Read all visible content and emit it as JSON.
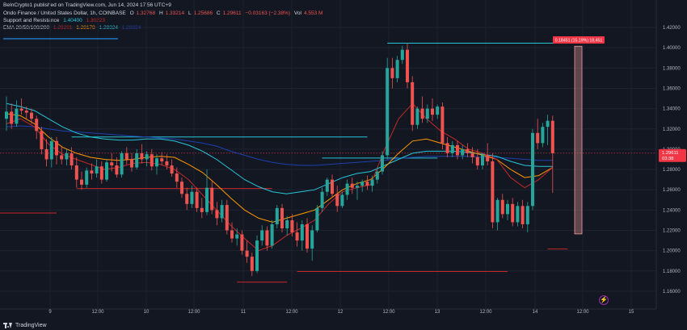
{
  "header": {
    "publisher": "BeInCrypto1 published on TradingView.com, Jun 14, 2024 17:56 UTC+9",
    "symbol": "Ondo Finance / United States Dollar, 1h, COINBASE",
    "o_label": "O",
    "o_value": "1.32768",
    "h_label": "H",
    "h_value": "1.33214",
    "l_label": "L",
    "l_value": "1.25686",
    "c_label": "C",
    "c_value": "1.29611",
    "change": "−0.03163 (−2.38%)",
    "vol_label": "Vol",
    "vol_value": "4.553 M",
    "sr_name": "Support and Resistance",
    "sr_v1": "1.40400",
    "sr_v2": "1.30223",
    "ema_name": "EMA 20/50/100/200",
    "ema_v1": "1.28201",
    "ema_v2": "1.28178",
    "ema_v3": "1.28324",
    "ema_v4": "1.28824"
  },
  "footer": {
    "brand": "TradingView"
  },
  "colors": {
    "background": "#131722",
    "up": "#26a69a",
    "down": "#ef5350",
    "ema20": "#c62828",
    "ema50": "#ff9800",
    "ema100": "#26c6da",
    "ema200": "#1e40af",
    "resistance": "#26c6da",
    "support": "#c62828",
    "current_price": "#f23645",
    "measure_box": "#ef9a9a"
  },
  "chart_data": {
    "type": "candlestick",
    "symbol": "ONDO/USD",
    "timeframe": "1h",
    "ylim": [
      1.15,
      1.43
    ],
    "y_ticks": [
      "1.16000",
      "1.18000",
      "1.20000",
      "1.22000",
      "1.24000",
      "1.26000",
      "1.28000",
      "1.30000",
      "1.32000",
      "1.34000",
      "1.36000",
      "1.38000",
      "1.40000",
      "1.42000"
    ],
    "x_ticks": [
      "9",
      "12:00",
      "10",
      "12:00",
      "11",
      "12:00",
      "12",
      "12:00",
      "13",
      "12:00",
      "14",
      "12:00",
      "15"
    ],
    "current_price": "1.29611",
    "countdown": "03:38",
    "measure_label": "0.18451 (15.19%) 18,451",
    "candles_ohlc": [
      [
        1.33,
        1.352,
        1.318,
        1.337
      ],
      [
        1.337,
        1.345,
        1.32,
        1.325
      ],
      [
        1.325,
        1.348,
        1.322,
        1.34
      ],
      [
        1.34,
        1.35,
        1.334,
        1.338
      ],
      [
        1.338,
        1.342,
        1.33,
        1.336
      ],
      [
        1.336,
        1.34,
        1.325,
        1.33
      ],
      [
        1.33,
        1.333,
        1.31,
        1.318
      ],
      [
        1.318,
        1.322,
        1.295,
        1.3
      ],
      [
        1.3,
        1.31,
        1.283,
        1.29
      ],
      [
        1.29,
        1.312,
        1.282,
        1.308
      ],
      [
        1.308,
        1.312,
        1.285,
        1.294
      ],
      [
        1.294,
        1.302,
        1.285,
        1.29
      ],
      [
        1.29,
        1.3,
        1.284,
        1.296
      ],
      [
        1.296,
        1.302,
        1.28,
        1.284
      ],
      [
        1.284,
        1.292,
        1.262,
        1.27
      ],
      [
        1.27,
        1.278,
        1.26,
        1.265
      ],
      [
        1.265,
        1.282,
        1.262,
        1.279
      ],
      [
        1.279,
        1.286,
        1.27,
        1.276
      ],
      [
        1.276,
        1.29,
        1.272,
        1.283
      ],
      [
        1.283,
        1.288,
        1.266,
        1.27
      ],
      [
        1.27,
        1.29,
        1.268,
        1.287
      ],
      [
        1.287,
        1.296,
        1.278,
        1.284
      ],
      [
        1.284,
        1.292,
        1.272,
        1.275
      ],
      [
        1.275,
        1.298,
        1.272,
        1.296
      ],
      [
        1.296,
        1.302,
        1.285,
        1.29
      ],
      [
        1.29,
        1.296,
        1.278,
        1.282
      ],
      [
        1.282,
        1.3,
        1.28,
        1.296
      ],
      [
        1.296,
        1.305,
        1.286,
        1.29
      ],
      [
        1.29,
        1.298,
        1.283,
        1.295
      ],
      [
        1.295,
        1.3,
        1.279,
        1.283
      ],
      [
        1.283,
        1.295,
        1.275,
        1.291
      ],
      [
        1.291,
        1.297,
        1.284,
        1.288
      ],
      [
        1.288,
        1.295,
        1.28,
        1.284
      ],
      [
        1.284,
        1.29,
        1.273,
        1.276
      ],
      [
        1.276,
        1.282,
        1.262,
        1.268
      ],
      [
        1.268,
        1.272,
        1.252,
        1.256
      ],
      [
        1.256,
        1.262,
        1.24,
        1.246
      ],
      [
        1.246,
        1.264,
        1.242,
        1.258
      ],
      [
        1.258,
        1.262,
        1.238,
        1.242
      ],
      [
        1.242,
        1.252,
        1.232,
        1.238
      ],
      [
        1.238,
        1.28,
        1.235,
        1.262
      ],
      [
        1.262,
        1.268,
        1.236,
        1.24
      ],
      [
        1.24,
        1.248,
        1.225,
        1.232
      ],
      [
        1.232,
        1.25,
        1.228,
        1.245
      ],
      [
        1.245,
        1.25,
        1.216,
        1.22
      ],
      [
        1.22,
        1.228,
        1.208,
        1.212
      ],
      [
        1.212,
        1.222,
        1.205,
        1.216
      ],
      [
        1.216,
        1.22,
        1.196,
        1.2
      ],
      [
        1.2,
        1.21,
        1.188,
        1.194
      ],
      [
        1.194,
        1.198,
        1.175,
        1.18
      ],
      [
        1.18,
        1.215,
        1.178,
        1.21
      ],
      [
        1.21,
        1.225,
        1.205,
        1.22
      ],
      [
        1.22,
        1.224,
        1.2,
        1.205
      ],
      [
        1.205,
        1.23,
        1.202,
        1.226
      ],
      [
        1.226,
        1.245,
        1.222,
        1.242
      ],
      [
        1.242,
        1.246,
        1.218,
        1.222
      ],
      [
        1.222,
        1.234,
        1.215,
        1.23
      ],
      [
        1.23,
        1.236,
        1.214,
        1.218
      ],
      [
        1.218,
        1.228,
        1.204,
        1.21
      ],
      [
        1.21,
        1.23,
        1.2,
        1.226
      ],
      [
        1.226,
        1.232,
        1.198,
        1.202
      ],
      [
        1.202,
        1.225,
        1.19,
        1.22
      ],
      [
        1.22,
        1.245,
        1.218,
        1.242
      ],
      [
        1.242,
        1.262,
        1.238,
        1.258
      ],
      [
        1.258,
        1.272,
        1.254,
        1.27
      ],
      [
        1.27,
        1.275,
        1.252,
        1.256
      ],
      [
        1.256,
        1.264,
        1.238,
        1.244
      ],
      [
        1.244,
        1.258,
        1.242,
        1.255
      ],
      [
        1.255,
        1.27,
        1.25,
        1.266
      ],
      [
        1.266,
        1.272,
        1.256,
        1.262
      ],
      [
        1.262,
        1.268,
        1.25,
        1.264
      ],
      [
        1.264,
        1.27,
        1.258,
        1.268
      ],
      [
        1.268,
        1.274,
        1.26,
        1.264
      ],
      [
        1.264,
        1.274,
        1.258,
        1.27
      ],
      [
        1.27,
        1.282,
        1.266,
        1.278
      ],
      [
        1.278,
        1.298,
        1.275,
        1.294
      ],
      [
        1.294,
        1.39,
        1.29,
        1.38
      ],
      [
        1.38,
        1.39,
        1.36,
        1.37
      ],
      [
        1.37,
        1.392,
        1.366,
        1.388
      ],
      [
        1.388,
        1.402,
        1.384,
        1.398
      ],
      [
        1.398,
        1.404,
        1.36,
        1.366
      ],
      [
        1.366,
        1.372,
        1.318,
        1.324
      ],
      [
        1.324,
        1.342,
        1.32,
        1.34
      ],
      [
        1.34,
        1.352,
        1.326,
        1.33
      ],
      [
        1.33,
        1.344,
        1.326,
        1.34
      ],
      [
        1.34,
        1.35,
        1.328,
        1.334
      ],
      [
        1.334,
        1.344,
        1.33,
        1.342
      ],
      [
        1.342,
        1.346,
        1.3,
        1.306
      ],
      [
        1.306,
        1.312,
        1.292,
        1.296
      ],
      [
        1.296,
        1.308,
        1.292,
        1.304
      ],
      [
        1.304,
        1.308,
        1.29,
        1.294
      ],
      [
        1.294,
        1.304,
        1.29,
        1.3
      ],
      [
        1.3,
        1.306,
        1.292,
        1.296
      ],
      [
        1.296,
        1.302,
        1.286,
        1.292
      ],
      [
        1.292,
        1.3,
        1.28,
        1.284
      ],
      [
        1.284,
        1.296,
        1.28,
        1.294
      ],
      [
        1.294,
        1.306,
        1.284,
        1.288
      ],
      [
        1.288,
        1.296,
        1.222,
        1.228
      ],
      [
        1.228,
        1.252,
        1.22,
        1.25
      ],
      [
        1.25,
        1.256,
        1.232,
        1.236
      ],
      [
        1.236,
        1.25,
        1.23,
        1.246
      ],
      [
        1.246,
        1.252,
        1.224,
        1.228
      ],
      [
        1.228,
        1.248,
        1.224,
        1.244
      ],
      [
        1.244,
        1.25,
        1.222,
        1.226
      ],
      [
        1.226,
        1.248,
        1.218,
        1.244
      ],
      [
        1.244,
        1.32,
        1.24,
        1.316
      ],
      [
        1.316,
        1.33,
        1.3,
        1.306
      ],
      [
        1.306,
        1.326,
        1.302,
        1.322
      ],
      [
        1.322,
        1.334,
        1.304,
        1.328
      ],
      [
        1.328,
        1.333,
        1.257,
        1.296
      ]
    ],
    "ema20": [
      1.325,
      1.33,
      1.322,
      1.305,
      1.295,
      1.29,
      1.285,
      1.28,
      1.282,
      1.286,
      1.287,
      1.285,
      1.28,
      1.27,
      1.255,
      1.24,
      1.225,
      1.212,
      1.2,
      1.205,
      1.215,
      1.222,
      1.23,
      1.246,
      1.258,
      1.262,
      1.265,
      1.3,
      1.33,
      1.345,
      1.33,
      1.318,
      1.31,
      1.3,
      1.296,
      1.29,
      1.272,
      1.262,
      1.27,
      1.282
    ],
    "ema50": [
      1.335,
      1.333,
      1.325,
      1.312,
      1.302,
      1.296,
      1.292,
      1.29,
      1.289,
      1.29,
      1.292,
      1.293,
      1.292,
      1.285,
      1.277,
      1.265,
      1.252,
      1.24,
      1.232,
      1.228,
      1.232,
      1.236,
      1.24,
      1.25,
      1.26,
      1.266,
      1.27,
      1.282,
      1.296,
      1.308,
      1.31,
      1.306,
      1.302,
      1.298,
      1.294,
      1.29,
      1.28,
      1.272,
      1.274,
      1.282
    ],
    "ema100": [
      1.345,
      1.342,
      1.338,
      1.33,
      1.322,
      1.316,
      1.312,
      1.31,
      1.309,
      1.309,
      1.31,
      1.31,
      1.308,
      1.304,
      1.298,
      1.29,
      1.28,
      1.27,
      1.263,
      1.258,
      1.256,
      1.258,
      1.26,
      1.266,
      1.272,
      1.276,
      1.278,
      1.284,
      1.29,
      1.296,
      1.298,
      1.298,
      1.298,
      1.297,
      1.295,
      1.293,
      1.288,
      1.284,
      1.283,
      1.283
    ],
    "ema200": [
      1.322,
      1.323,
      1.322,
      1.32,
      1.318,
      1.317,
      1.316,
      1.315,
      1.314,
      1.313,
      1.312,
      1.311,
      1.31,
      1.308,
      1.306,
      1.303,
      1.298,
      1.294,
      1.29,
      1.287,
      1.285,
      1.284,
      1.284,
      1.285,
      1.286,
      1.287,
      1.288,
      1.289,
      1.291,
      1.292,
      1.293,
      1.293,
      1.293,
      1.293,
      1.292,
      1.292,
      1.291,
      1.29,
      1.289,
      1.289
    ],
    "levels": [
      {
        "kind": "resistance",
        "price": 1.4045,
        "from": 76,
        "to": 113
      },
      {
        "kind": "resistance",
        "price": 1.312,
        "from": 13,
        "to": 72
      },
      {
        "kind": "resistance",
        "price": 1.2913,
        "from": 63,
        "to": 86
      },
      {
        "kind": "support",
        "price": 1.2613,
        "from": 14,
        "to": 53
      },
      {
        "kind": "support",
        "price": 1.2371,
        "from": -4,
        "to": 10
      },
      {
        "kind": "support",
        "price": 1.2016,
        "from": 108,
        "to": 112
      },
      {
        "kind": "support",
        "price": 1.1794,
        "from": 58,
        "to": 100
      },
      {
        "kind": "support",
        "price": 1.169,
        "from": 46,
        "to": 56
      }
    ]
  }
}
